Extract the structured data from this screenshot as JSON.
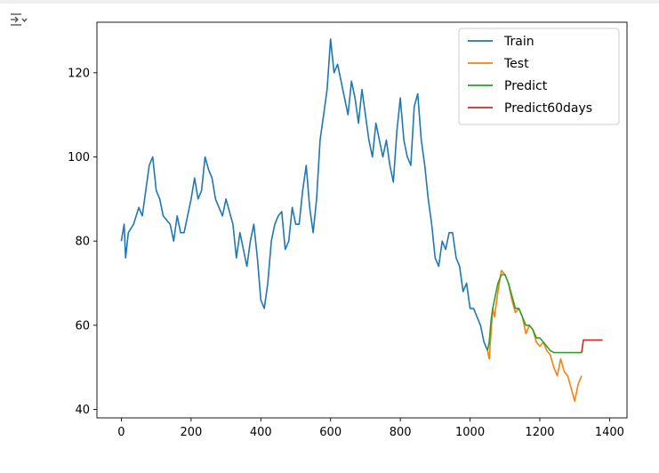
{
  "output_toggle_icon": "output-collapse-icon",
  "chart_data": {
    "type": "line",
    "title": "",
    "xlabel": "",
    "ylabel": "",
    "xlim": [
      -70,
      1450
    ],
    "ylim": [
      38,
      132
    ],
    "xticks": [
      0,
      200,
      400,
      600,
      800,
      1000,
      1200,
      1400
    ],
    "yticks": [
      40,
      60,
      80,
      100,
      120
    ],
    "grid": false,
    "legend_position": "top-right",
    "series": [
      {
        "name": "Train",
        "color": "#1f77b4",
        "x": [
          0,
          8,
          12,
          20,
          35,
          50,
          60,
          70,
          80,
          90,
          100,
          110,
          120,
          140,
          150,
          160,
          170,
          180,
          200,
          210,
          220,
          230,
          240,
          250,
          260,
          270,
          280,
          290,
          300,
          320,
          330,
          340,
          350,
          360,
          370,
          380,
          390,
          400,
          410,
          420,
          430,
          440,
          450,
          460,
          470,
          480,
          490,
          500,
          510,
          520,
          530,
          540,
          550,
          560,
          570,
          580,
          590,
          600,
          610,
          620,
          630,
          640,
          650,
          660,
          670,
          680,
          690,
          700,
          710,
          720,
          730,
          740,
          750,
          760,
          770,
          780,
          790,
          800,
          810,
          820,
          830,
          840,
          850,
          860,
          870,
          880,
          890,
          900,
          910,
          920,
          930,
          940,
          950,
          960,
          970,
          980,
          990,
          1000,
          1010,
          1020,
          1030,
          1040,
          1050
        ],
        "y": [
          80,
          84,
          76,
          82,
          84,
          88,
          86,
          92,
          98,
          100,
          92,
          90,
          86,
          84,
          80,
          86,
          82,
          82,
          90,
          95,
          90,
          92,
          100,
          97,
          95,
          90,
          88,
          86,
          90,
          84,
          76,
          82,
          78,
          74,
          80,
          84,
          76,
          66,
          64,
          70,
          80,
          84,
          86,
          87,
          78,
          80,
          88,
          84,
          84,
          92,
          98,
          88,
          82,
          90,
          104,
          110,
          116,
          128,
          120,
          122,
          118,
          114,
          110,
          118,
          114,
          108,
          116,
          110,
          104,
          100,
          108,
          104,
          100,
          104,
          98,
          94,
          106,
          114,
          104,
          100,
          98,
          112,
          115,
          104,
          98,
          90,
          84,
          76,
          74,
          80,
          78,
          82,
          82,
          76,
          74,
          68,
          70,
          64,
          64,
          62,
          60,
          56,
          54
        ]
      },
      {
        "name": "Test",
        "color": "#ff7f0e",
        "x": [
          1050,
          1055,
          1060,
          1065,
          1070,
          1080,
          1090,
          1100,
          1110,
          1120,
          1130,
          1140,
          1150,
          1160,
          1170,
          1180,
          1190,
          1200,
          1210,
          1220,
          1230,
          1240,
          1250,
          1260,
          1270,
          1280,
          1290,
          1300,
          1310,
          1320
        ],
        "y": [
          54,
          52,
          58,
          64,
          62,
          68,
          73,
          72,
          70,
          66,
          63,
          64,
          62,
          58,
          60,
          59,
          56,
          55,
          56,
          54,
          53,
          50,
          48,
          52,
          49,
          48,
          45,
          42,
          46,
          48
        ]
      },
      {
        "name": "Predict",
        "color": "#2ca02c",
        "x": [
          1050,
          1055,
          1060,
          1065,
          1070,
          1080,
          1090,
          1100,
          1110,
          1120,
          1130,
          1140,
          1150,
          1160,
          1170,
          1180,
          1190,
          1200,
          1210,
          1220,
          1230,
          1240,
          1250,
          1260,
          1270,
          1280,
          1290,
          1300,
          1310,
          1320
        ],
        "y": [
          54,
          56,
          61,
          64,
          66,
          70,
          72,
          72,
          70,
          67,
          64,
          64,
          62,
          60,
          60,
          59,
          57,
          57,
          56,
          55,
          54,
          53.5,
          53.5,
          53.5,
          53.5,
          53.5,
          53.5,
          53.5,
          53.5,
          53.5
        ]
      },
      {
        "name": "Predict60days",
        "color": "#d62728",
        "x": [
          1320,
          1325,
          1340,
          1360,
          1380
        ],
        "y": [
          53.5,
          56.5,
          56.5,
          56.5,
          56.5
        ]
      }
    ]
  }
}
